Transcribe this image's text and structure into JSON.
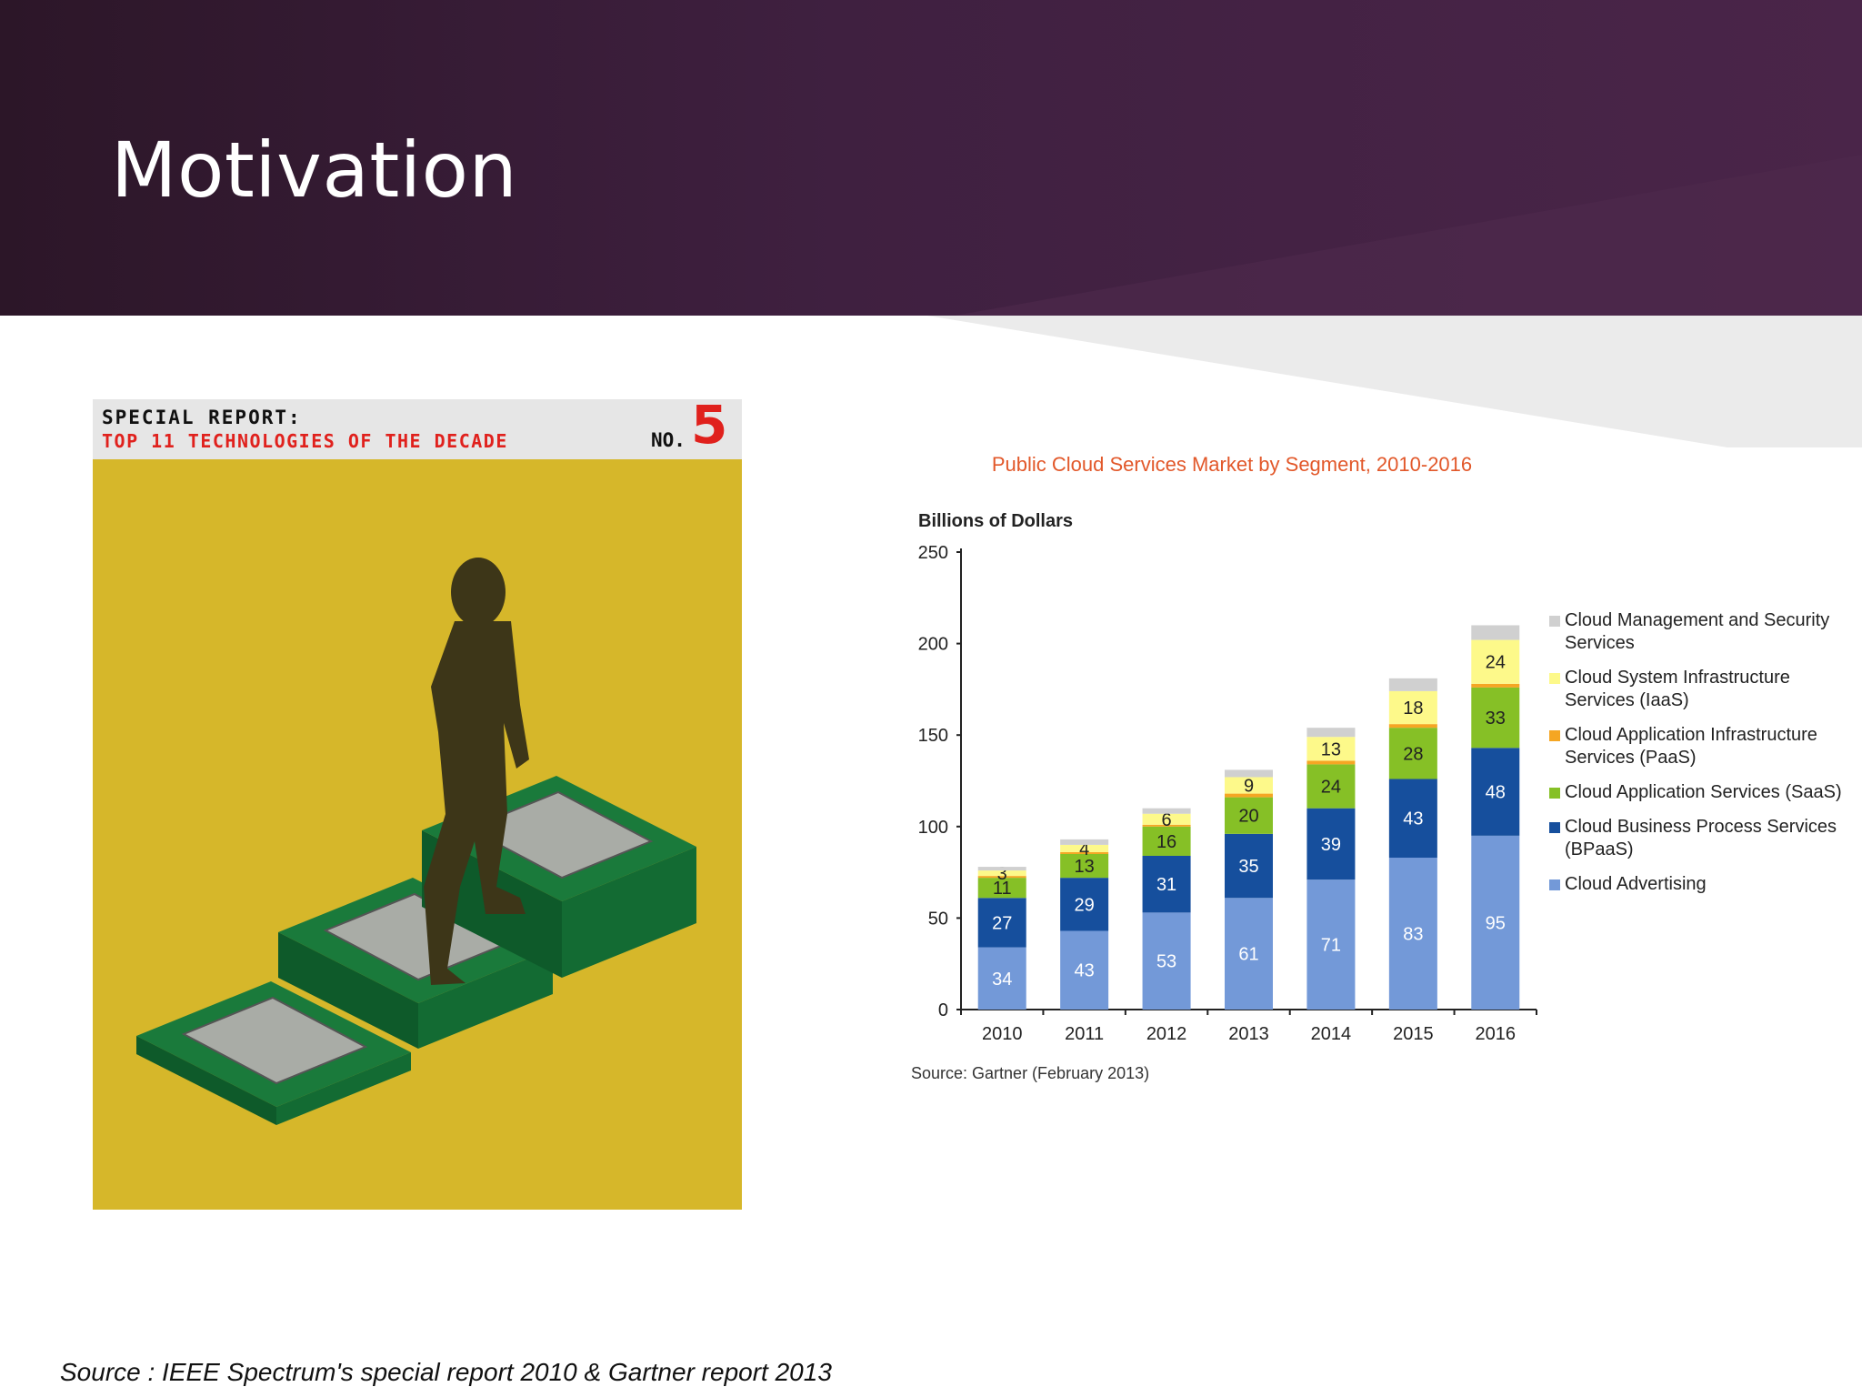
{
  "slide": {
    "title": "Motivation",
    "footer": "Source : IEEE Spectrum's special report 2010 & Gartner report 2013"
  },
  "poster": {
    "line1": "SPECIAL REPORT:",
    "line2": "TOP 11 TECHNOLOGIES OF THE DECADE",
    "no_label": "NO.",
    "number": "5",
    "colors": {
      "background": "#d6b72a",
      "band": "#e6e6e6",
      "accent": "#e0211d"
    }
  },
  "chart_data": {
    "type": "bar",
    "stacked": true,
    "title": "Public Cloud Services Market by Segment, 2010-2016",
    "ylabel": "Billions of Dollars",
    "xlabel": "",
    "source": "Source: Gartner (February 2013)",
    "categories": [
      "2010",
      "2011",
      "2012",
      "2013",
      "2014",
      "2015",
      "2016"
    ],
    "ylim": [
      0,
      250
    ],
    "yticks": [
      0,
      50,
      100,
      150,
      200,
      250
    ],
    "legend_position": "right",
    "series": [
      {
        "name": "Cloud Advertising",
        "color": "#7399d8",
        "label_color": "#ffffff",
        "values": [
          34,
          43,
          53,
          61,
          71,
          83,
          95
        ]
      },
      {
        "name": "Cloud Business Process Services (BPaaS)",
        "color": "#164f9d",
        "label_color": "#ffffff",
        "values": [
          27,
          29,
          31,
          35,
          39,
          43,
          48
        ]
      },
      {
        "name": "Cloud Application Services (SaaS)",
        "color": "#86c026",
        "label_color": "#222222",
        "values": [
          11,
          13,
          16,
          20,
          24,
          28,
          33
        ]
      },
      {
        "name": "Cloud Application Infrastructure Services (PaaS)",
        "color": "#f5a623",
        "label_color": "#222222",
        "values": [
          1,
          1,
          1,
          2,
          2,
          2,
          2
        ],
        "show_labels": false
      },
      {
        "name": "Cloud System Infrastructure Services (IaaS)",
        "color": "#fdf98a",
        "label_color": "#222222",
        "values": [
          3,
          4,
          6,
          9,
          13,
          18,
          24
        ]
      },
      {
        "name": "Cloud Management and Security Services",
        "color": "#d0d0d0",
        "label_color": "#222222",
        "values": [
          2,
          3,
          3,
          4,
          5,
          7,
          8
        ],
        "show_labels": false
      }
    ],
    "legend": [
      {
        "label": "Cloud Management and Security Services",
        "color": "#d0d0d0"
      },
      {
        "label": "Cloud System Infrastructure Services (IaaS)",
        "color": "#fdf98a"
      },
      {
        "label": "Cloud Application Infrastructure Services (PaaS)",
        "color": "#f5a623"
      },
      {
        "label": "Cloud Application Services (SaaS)",
        "color": "#86c026"
      },
      {
        "label": "Cloud Business Process Services (BPaaS)",
        "color": "#164f9d"
      },
      {
        "label": "Cloud Advertising",
        "color": "#7399d8"
      }
    ]
  }
}
